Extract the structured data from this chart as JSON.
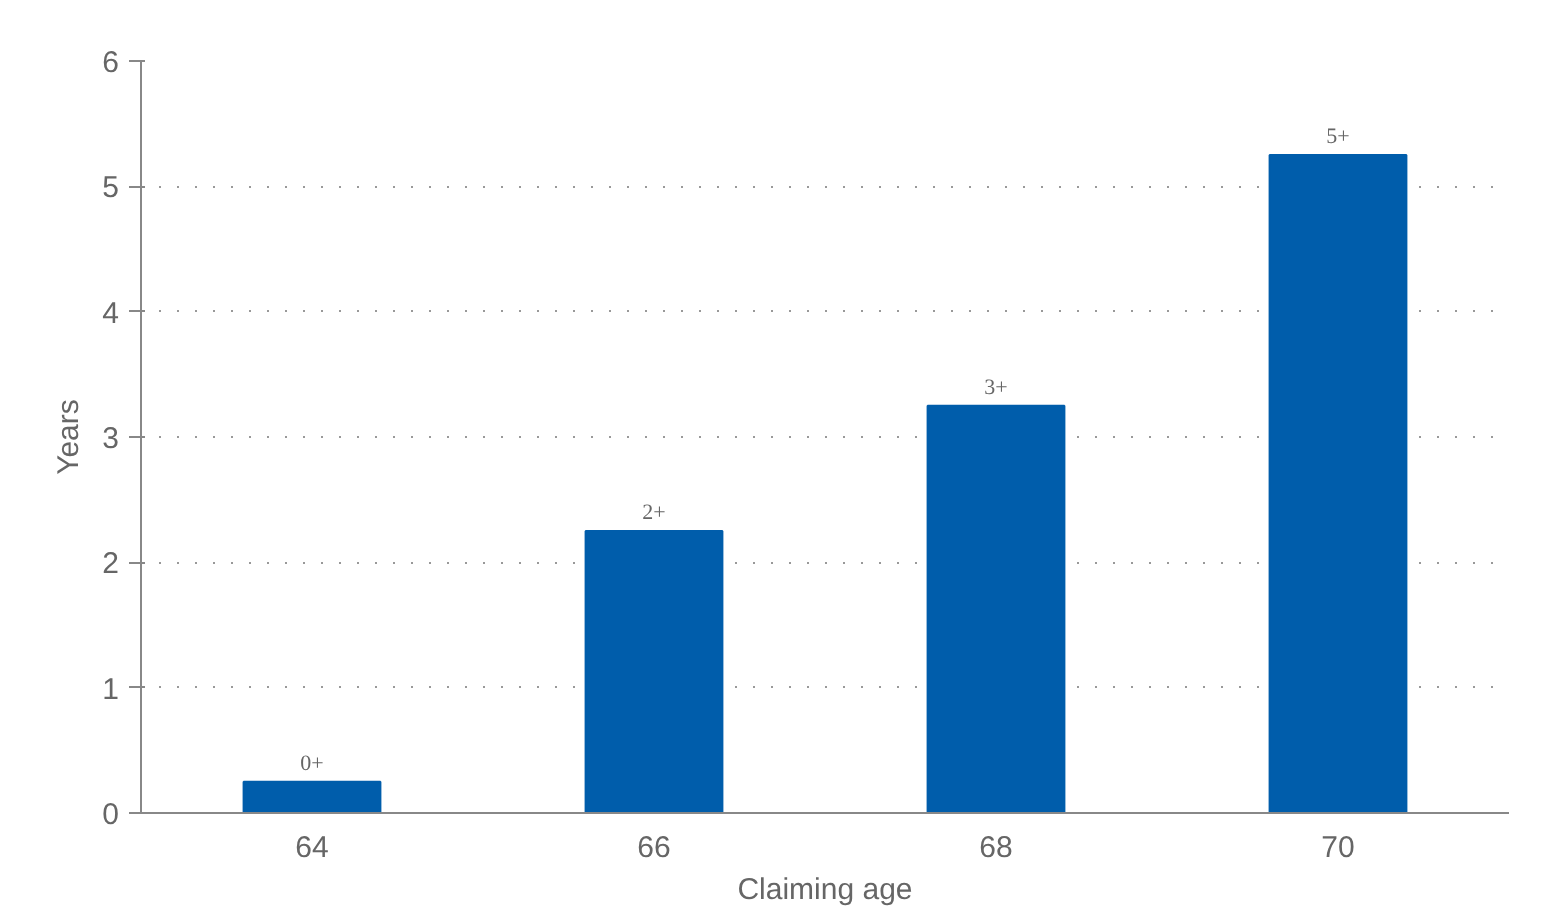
{
  "chart_data": {
    "type": "bar",
    "xlabel": "Claiming age",
    "ylabel": "Years",
    "categories": [
      "64",
      "66",
      "68",
      "70"
    ],
    "values": [
      0.25,
      2.25,
      3.25,
      5.25
    ],
    "value_labels": [
      "0+",
      "2+",
      "3+",
      "5+"
    ],
    "color": "#005dab",
    "ylim": [
      0,
      6
    ],
    "yticks": [
      0,
      1,
      2,
      3,
      4,
      5,
      6
    ],
    "grid": "y"
  }
}
